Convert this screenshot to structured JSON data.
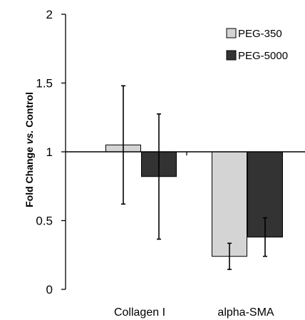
{
  "chart_data": {
    "type": "bar",
    "title": "",
    "xlabel": "",
    "ylabel": {
      "prefix": "Fold Change ",
      "italic": "vs.",
      "suffix": " Control"
    },
    "ylim": [
      0,
      2
    ],
    "yticks": [
      "0",
      "0.5",
      "1",
      "1.5",
      "2"
    ],
    "baseline": 1,
    "grid": false,
    "legend_position": "top-right",
    "categories": [
      "Collagen I",
      "alpha-SMA"
    ],
    "series": [
      {
        "name": "PEG-350",
        "color": "#d4d4d4",
        "values": [
          1.05,
          0.24
        ],
        "error": [
          0.43,
          0.095
        ]
      },
      {
        "name": "PEG-5000",
        "color": "#333333",
        "values": [
          0.82,
          0.38
        ],
        "error": [
          0.455,
          0.14
        ]
      }
    ]
  }
}
